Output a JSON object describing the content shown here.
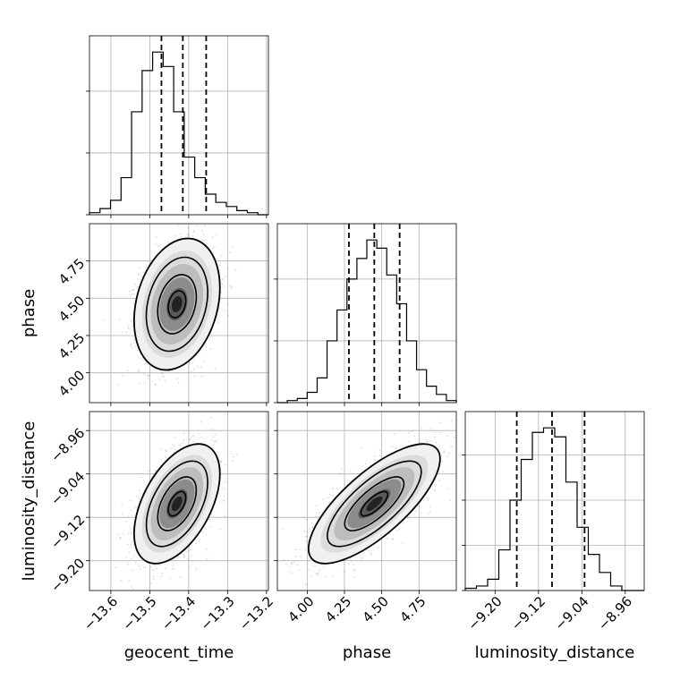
{
  "chart_data": {
    "type": "corner",
    "parameters": [
      {
        "name": "geocent_time",
        "range": [
          -13.655,
          -13.195
        ],
        "ticks": [
          -13.6,
          -13.5,
          -13.4,
          -13.3,
          -13.2
        ],
        "tick_labels": [
          "−13.6",
          "−13.5",
          "−13.4",
          "−13.3",
          "−13.2"
        ],
        "quantiles": [
          -13.47,
          -13.415,
          -13.355
        ],
        "hist_counts": [
          1,
          3,
          7,
          18,
          50,
          70,
          79,
          72,
          50,
          28,
          18,
          10,
          6,
          4,
          2,
          1,
          0
        ]
      },
      {
        "name": "phase",
        "range": [
          3.8,
          5.0
        ],
        "ticks": [
          4.0,
          4.25,
          4.5,
          4.75
        ],
        "tick_labels": [
          "4.00",
          "4.25",
          "4.50",
          "4.75"
        ],
        "y_tick_labels": [
          "4.00",
          "4.25",
          "4.50",
          "4.75"
        ],
        "quantiles": [
          4.28,
          4.45,
          4.62
        ],
        "hist_counts": [
          0,
          1,
          2,
          5,
          12,
          30,
          45,
          60,
          70,
          79,
          75,
          62,
          48,
          30,
          16,
          8,
          4,
          1
        ]
      },
      {
        "name": "luminosity_distance",
        "range": [
          -9.255,
          -8.925
        ],
        "ticks": [
          -9.2,
          -9.12,
          -9.04,
          -8.96
        ],
        "tick_labels": [
          "−9.20",
          "−9.12",
          "−9.04",
          "−8.96"
        ],
        "y_tick_labels": [
          "−8.96",
          "−9.04",
          "−9.12",
          "−9.20"
        ],
        "quantiles": [
          -9.16,
          -9.095,
          -9.035
        ],
        "hist_counts": [
          1,
          2,
          5,
          18,
          40,
          58,
          70,
          72,
          68,
          48,
          28,
          16,
          8,
          2,
          0,
          0
        ]
      }
    ],
    "pairs": [
      {
        "x": "geocent_time",
        "y": "phase",
        "mean": [
          -13.43,
          4.46
        ],
        "std": [
          0.045,
          0.18
        ],
        "corr": 0.25
      },
      {
        "x": "geocent_time",
        "y": "luminosity_distance",
        "mean": [
          -13.43,
          -9.095
        ],
        "std": [
          0.045,
          0.045
        ],
        "corr": 0.5
      },
      {
        "x": "phase",
        "y": "luminosity_distance",
        "mean": [
          4.45,
          -9.095
        ],
        "std": [
          0.18,
          0.045
        ],
        "corr": 0.75
      }
    ],
    "quantile_line_style": "dashed",
    "grid": true
  }
}
